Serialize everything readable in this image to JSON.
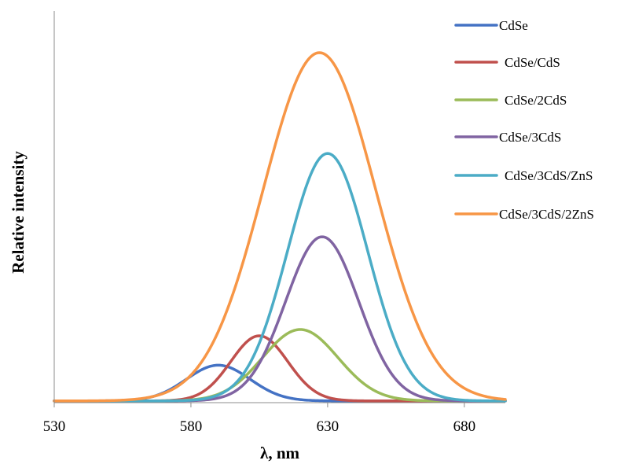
{
  "chart_data": {
    "type": "line",
    "xlabel": "λ, nm",
    "ylabel": "Relative intensity",
    "xlim": [
      530,
      695
    ],
    "ylim": [
      0,
      1.0
    ],
    "x_ticks": [
      530,
      580,
      630,
      680
    ],
    "grid": false,
    "y_tick_labels": false,
    "legend_position": "right",
    "series": [
      {
        "name": "CdSe",
        "color": "#4472C4",
        "peak_x": 590,
        "peak_y": 0.107,
        "fwhm": 27.5,
        "baseline": 0.005
      },
      {
        "name": "CdSe/CdS",
        "color": "#C0504D",
        "peak_x": 605,
        "peak_y": 0.191,
        "fwhm": 24.5,
        "baseline": 0.005
      },
      {
        "name": "CdSe/2CdS",
        "color": "#9BBB59",
        "peak_x": 620,
        "peak_y": 0.209,
        "fwhm": 32.5,
        "baseline": 0.005
      },
      {
        "name": "CdSe/3CdS",
        "color": "#8064A2",
        "peak_x": 628,
        "peak_y": 0.474,
        "fwhm": 31.5,
        "baseline": 0.005
      },
      {
        "name": "CdSe/3CdS/ZnS",
        "color": "#4BACC6",
        "peak_x": 630,
        "peak_y": 0.712,
        "fwhm": 34.5,
        "baseline": 0.005
      },
      {
        "name": "CdSe/3CdS/2ZnS",
        "color": "#F79646",
        "peak_x": 627,
        "peak_y": 1.0,
        "fwhm": 48.5,
        "baseline": 0.005
      }
    ]
  }
}
